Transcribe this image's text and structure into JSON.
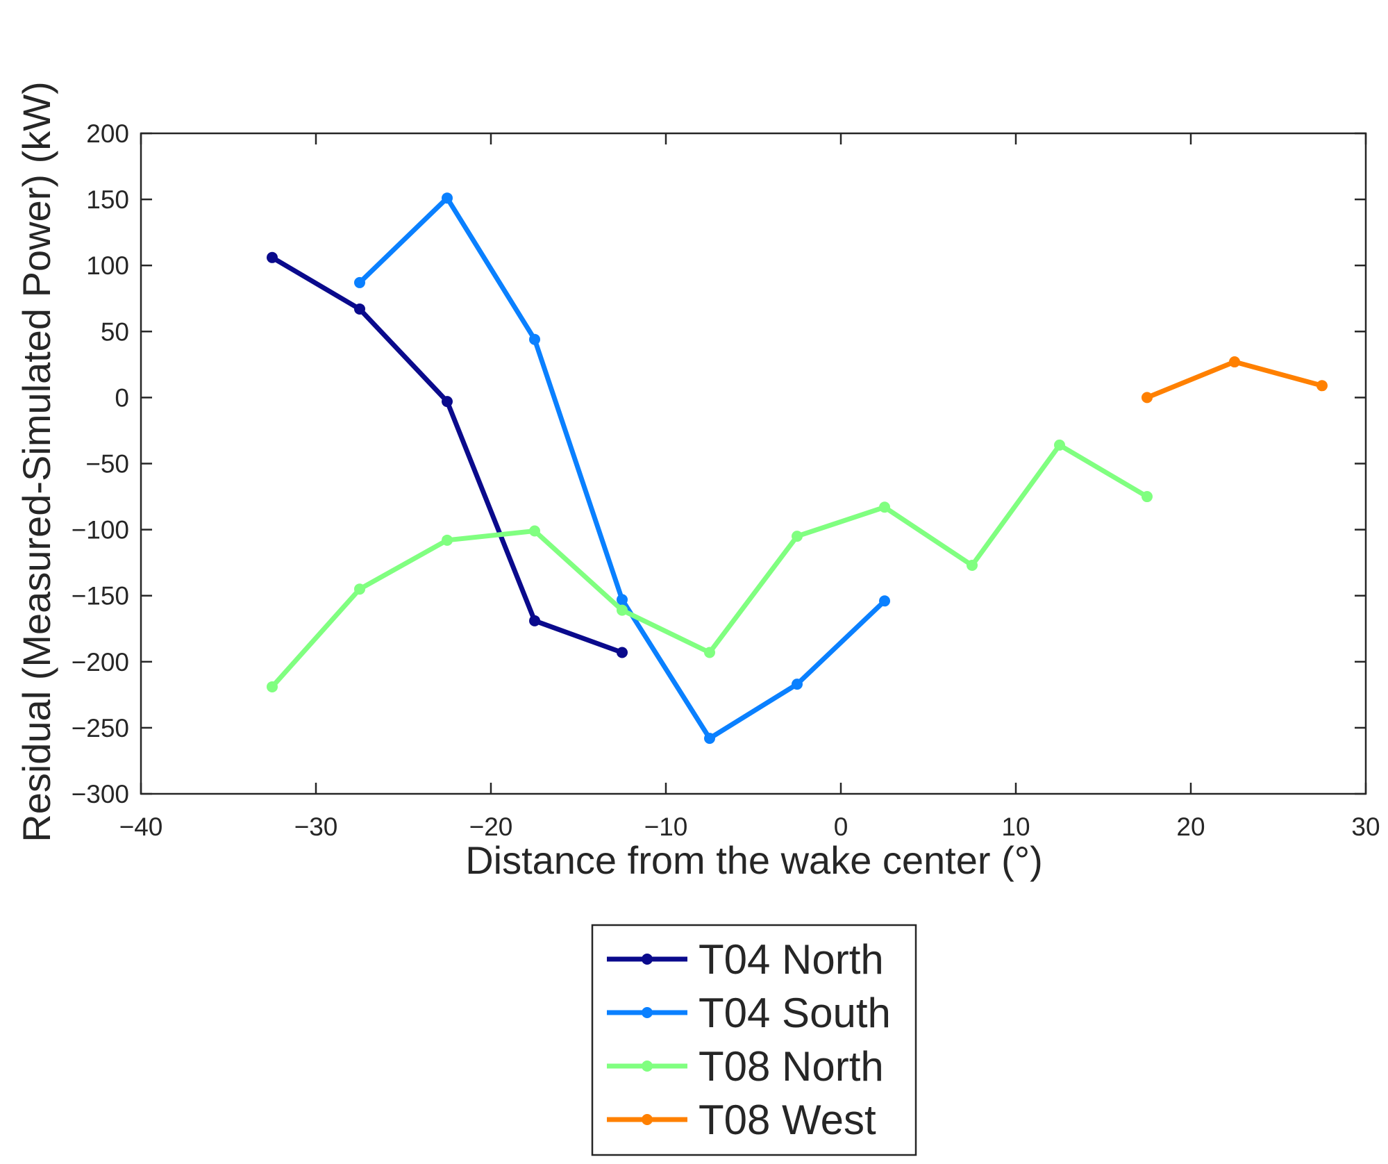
{
  "chart_data": {
    "type": "line",
    "title": "",
    "xlabel": "Distance from the wake center (°)",
    "ylabel": "Residual (Measured-Simulated Power) (kW)",
    "xlim": [
      -40,
      30
    ],
    "ylim": [
      -300,
      200
    ],
    "x_ticks": [
      -40,
      -30,
      -20,
      -10,
      0,
      10,
      20,
      30
    ],
    "x_tick_labels": [
      "−40",
      "−30",
      "−20",
      "−10",
      "0",
      "10",
      "20",
      "30"
    ],
    "y_ticks": [
      200,
      150,
      100,
      50,
      0,
      -50,
      -100,
      -150,
      -200,
      -250,
      -300
    ],
    "y_tick_labels": [
      "200",
      "150",
      "100",
      "50",
      "0",
      "−50",
      "−100",
      "−150",
      "−200",
      "−250",
      "−300"
    ],
    "grid": true,
    "legend_position": "bottom-center-outside",
    "series": [
      {
        "name": "T04 North",
        "color": "#0a0a8c",
        "x": [
          -32.5,
          -27.5,
          -22.5,
          -17.5,
          -12.5
        ],
        "y": [
          106,
          67,
          -3,
          -169,
          -193
        ]
      },
      {
        "name": "T04 South",
        "color": "#0a80ff",
        "x": [
          -27.5,
          -22.5,
          -17.5,
          -12.5,
          -7.5,
          -2.5,
          2.5
        ],
        "y": [
          87,
          151,
          44,
          -153,
          -258,
          -217,
          -154
        ]
      },
      {
        "name": "T08 North",
        "color": "#80ff80",
        "x": [
          -32.5,
          -27.5,
          -22.5,
          -17.5,
          -12.5,
          -7.5,
          -2.5,
          2.5,
          7.5,
          12.5,
          17.5
        ],
        "y": [
          -219,
          -145,
          -108,
          -101,
          -161,
          -193,
          -105,
          -83,
          -127,
          -36,
          -75
        ]
      },
      {
        "name": "T08 West",
        "color": "#ff8000",
        "x": [
          17.5,
          22.5,
          27.5
        ],
        "y": [
          0,
          27,
          9
        ]
      }
    ]
  }
}
